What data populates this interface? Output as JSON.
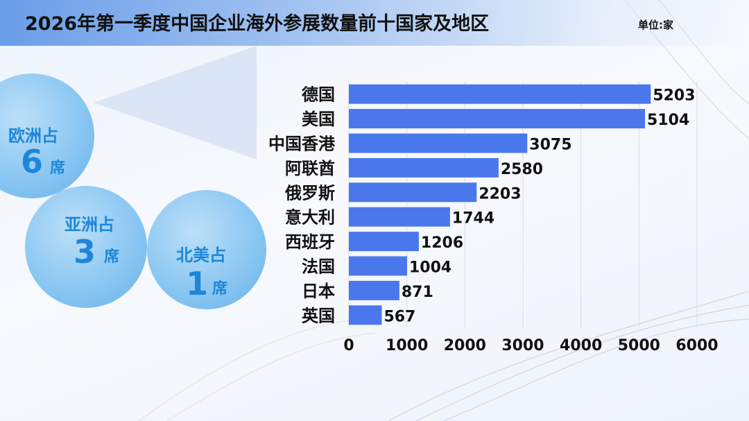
{
  "header": {
    "title": "2026年第一季度中国企业海外参展数量前十国家及地区",
    "unit": "单位:家"
  },
  "bubbles": [
    {
      "region": "欧洲占",
      "count": "6",
      "suffix": "席"
    },
    {
      "region": "亚洲占",
      "count": "3",
      "suffix": "席"
    },
    {
      "region": "北美占",
      "count": "1",
      "suffix": "席"
    }
  ],
  "colors": {
    "bar": "#4a78ec",
    "bubble": "#5aaeea",
    "bubble_text": "#1e86d8",
    "title_bar": "#6a9de8"
  },
  "chart_data": {
    "type": "bar",
    "orientation": "horizontal",
    "categories": [
      "德国",
      "美国",
      "中国香港",
      "阿联酋",
      "俄罗斯",
      "意大利",
      "西班牙",
      "法国",
      "日本",
      "英国"
    ],
    "values": [
      5203,
      5104,
      3075,
      2580,
      2203,
      1744,
      1206,
      1004,
      871,
      567
    ],
    "xticks": [
      0,
      1000,
      2000,
      3000,
      4000,
      5000,
      6000
    ],
    "xlim": [
      0,
      6000
    ],
    "grid": true,
    "legend": "none"
  }
}
